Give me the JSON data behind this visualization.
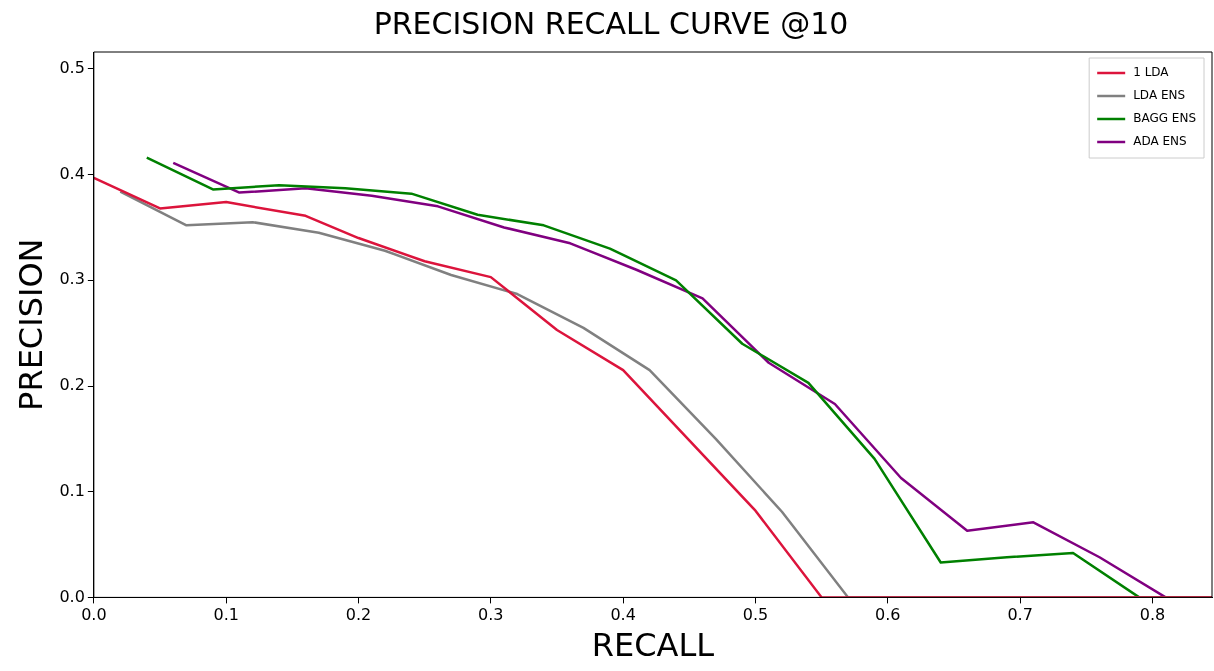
{
  "chart_data": {
    "type": "line",
    "title": "PRECISION RECALL CURVE @10",
    "xlabel": "RECALL",
    "ylabel": "PRECISION",
    "xlim": [
      0,
      0.845
    ],
    "ylim": [
      0,
      0.516
    ],
    "xticks": [
      {
        "value": 0,
        "label": "0.0"
      },
      0.1,
      0.2,
      0.3,
      0.4,
      0.5,
      0.6,
      0.7,
      0.8
    ],
    "yticks": [
      {
        "value": 0,
        "label": "0.0"
      },
      0.1,
      0.2,
      0.3,
      0.4,
      0.5
    ],
    "grid": false,
    "legend": "top right",
    "marker": "none",
    "line_style": "solid",
    "series": [
      {
        "name": "1 LDA",
        "color": "#dc143c",
        "x": [
          0,
          0.05,
          0.1,
          0.16,
          0.2,
          0.25,
          0.3,
          0.35,
          0.4,
          0.5,
          0.55,
          0.845
        ],
        "values": [
          0.397,
          0.368,
          0.374,
          0.361,
          0.34,
          0.318,
          0.303,
          0.253,
          0.215,
          0.082,
          0,
          0
        ]
      },
      {
        "name": "LDA ENS",
        "color": "#808080",
        "x": [
          0.02,
          0.07,
          0.12,
          0.17,
          0.22,
          0.27,
          0.32,
          0.37,
          0.42,
          0.47,
          0.52,
          0.57,
          0.845
        ],
        "values": [
          0.384,
          0.352,
          0.355,
          0.345,
          0.328,
          0.305,
          0.287,
          0.255,
          0.215,
          0.15,
          0.081,
          0,
          0
        ]
      },
      {
        "name": "BAGG ENS",
        "color": "#008000",
        "x": [
          0.04,
          0.09,
          0.14,
          0.19,
          0.24,
          0.29,
          0.34,
          0.39,
          0.44,
          0.49,
          0.54,
          0.59,
          0.64,
          0.69,
          0.74,
          0.79,
          0.845
        ],
        "values": [
          0.416,
          0.386,
          0.39,
          0.387,
          0.382,
          0.362,
          0.352,
          0.33,
          0.3,
          0.24,
          0.203,
          0.131,
          0.033,
          0.038,
          0.042,
          0,
          0
        ]
      },
      {
        "name": "ADA ENS",
        "color": "#800080",
        "x": [
          0.06,
          0.11,
          0.16,
          0.21,
          0.26,
          0.31,
          0.36,
          0.41,
          0.46,
          0.51,
          0.56,
          0.61,
          0.66,
          0.71,
          0.76,
          0.81,
          0.845
        ],
        "values": [
          0.411,
          0.383,
          0.387,
          0.38,
          0.37,
          0.35,
          0.335,
          0.31,
          0.283,
          0.222,
          0.183,
          0.113,
          0.063,
          0.071,
          0.038,
          0,
          0
        ]
      }
    ]
  }
}
